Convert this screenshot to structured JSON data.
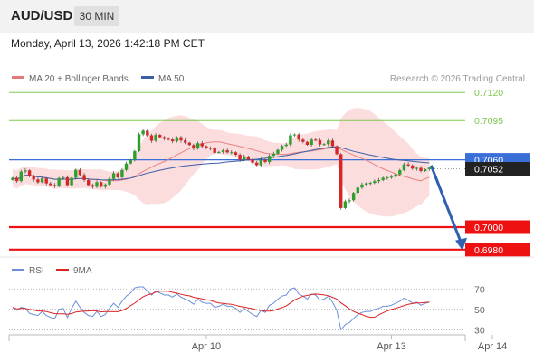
{
  "header": {
    "pair": "AUD/USD",
    "timeframe": "30 MIN"
  },
  "timestamp": "Monday, April 13, 2026 1:42:18 PM CET",
  "legend": {
    "bollinger": "MA 20 + Bollinger Bands",
    "ma50": "MA 50",
    "rsi": "RSI",
    "rsi_ma": "9MA"
  },
  "credit": "Research © 2026 Trading Central",
  "colors": {
    "up": "#2ca02c",
    "down": "#d62728",
    "resistance": "#7ec850",
    "support": "#ee1111",
    "pivot": "#3a6fd8",
    "current": "#222222",
    "ma50": "#3c5fa8",
    "ma20": "#e57878",
    "band": "#fad4d4",
    "rsi": "#6a8fd8",
    "rsi_ma": "#dd2222",
    "arrow": "#3060b0"
  },
  "chart_data": {
    "type": "candlestick",
    "instrument": "AUD/USD",
    "timeframe": "30 MIN",
    "ylim": [
      0.6975,
      0.7125
    ],
    "levels": [
      {
        "label": "0.7120",
        "value": 0.712,
        "kind": "resistance"
      },
      {
        "label": "0.7095",
        "value": 0.7095,
        "kind": "resistance"
      },
      {
        "label": "0.7060",
        "value": 0.706,
        "kind": "pivot"
      },
      {
        "label": "0.7052",
        "value": 0.7052,
        "kind": "current"
      },
      {
        "label": "0.7000",
        "value": 0.7,
        "kind": "support"
      },
      {
        "label": "0.6980",
        "value": 0.698,
        "kind": "support"
      }
    ],
    "x_ticks": [
      "Apr 10",
      "Apr 13",
      "Apr 14"
    ],
    "x_tick_candle_index": [
      46,
      90,
      114
    ],
    "arrow": {
      "from": 0.7055,
      "to": 0.698
    },
    "close": [
      0.7044,
      0.7041,
      0.70495,
      0.70506,
      0.70455,
      0.70425,
      0.704,
      0.70434,
      0.7039,
      0.70375,
      0.70366,
      0.70437,
      0.70445,
      0.70375,
      0.7044,
      0.7051,
      0.70465,
      0.7042,
      0.70375,
      0.7036,
      0.70401,
      0.7036,
      0.7038,
      0.7043,
      0.7048,
      0.70444,
      0.7051,
      0.70567,
      0.706,
      0.70678,
      0.70828,
      0.7086,
      0.70818,
      0.7077,
      0.70822,
      0.70802,
      0.70787,
      0.70781,
      0.70765,
      0.70801,
      0.70773,
      0.70753,
      0.70732,
      0.707,
      0.70748,
      0.70721,
      0.70706,
      0.70702,
      0.70662,
      0.7067,
      0.70685,
      0.70666,
      0.70667,
      0.70645,
      0.706,
      0.7063,
      0.70602,
      0.70575,
      0.70552,
      0.706,
      0.70581,
      0.70636,
      0.70655,
      0.70689,
      0.70724,
      0.70736,
      0.70818,
      0.70826,
      0.7078,
      0.7076,
      0.70734,
      0.7078,
      0.70775,
      0.70737,
      0.7074,
      0.70772,
      0.70722,
      0.7065,
      0.7017,
      0.7023,
      0.7024,
      0.70305,
      0.70353,
      0.7038,
      0.70391,
      0.70394,
      0.7041,
      0.7042,
      0.7044,
      0.70443,
      0.7045,
      0.7047,
      0.70508,
      0.7056,
      0.7055,
      0.70522,
      0.70528,
      0.705,
      0.70516,
      0.7053
    ],
    "rsi": {
      "levels": [
        70,
        50,
        30
      ],
      "ylim": [
        25,
        80
      ],
      "values": [
        52,
        49,
        52,
        51,
        46,
        45,
        44,
        48,
        44,
        42,
        41,
        50,
        51,
        42,
        51,
        58,
        52,
        47,
        44,
        43,
        48,
        43,
        45,
        51,
        56,
        52,
        58,
        63,
        66,
        71,
        72,
        72,
        68,
        64,
        68,
        66,
        64,
        64,
        62,
        65,
        62,
        60,
        58,
        55,
        60,
        57,
        56,
        56,
        52,
        53,
        55,
        53,
        53,
        51,
        47,
        51,
        48,
        45,
        43,
        49,
        47,
        54,
        56,
        60,
        63,
        64,
        70,
        71,
        65,
        63,
        60,
        65,
        64,
        59,
        60,
        63,
        57,
        49,
        30,
        35,
        37,
        41,
        45,
        47,
        48,
        48,
        50,
        51,
        53,
        53,
        54,
        56,
        58,
        61,
        59,
        56,
        57,
        54,
        56,
        57
      ]
    }
  }
}
